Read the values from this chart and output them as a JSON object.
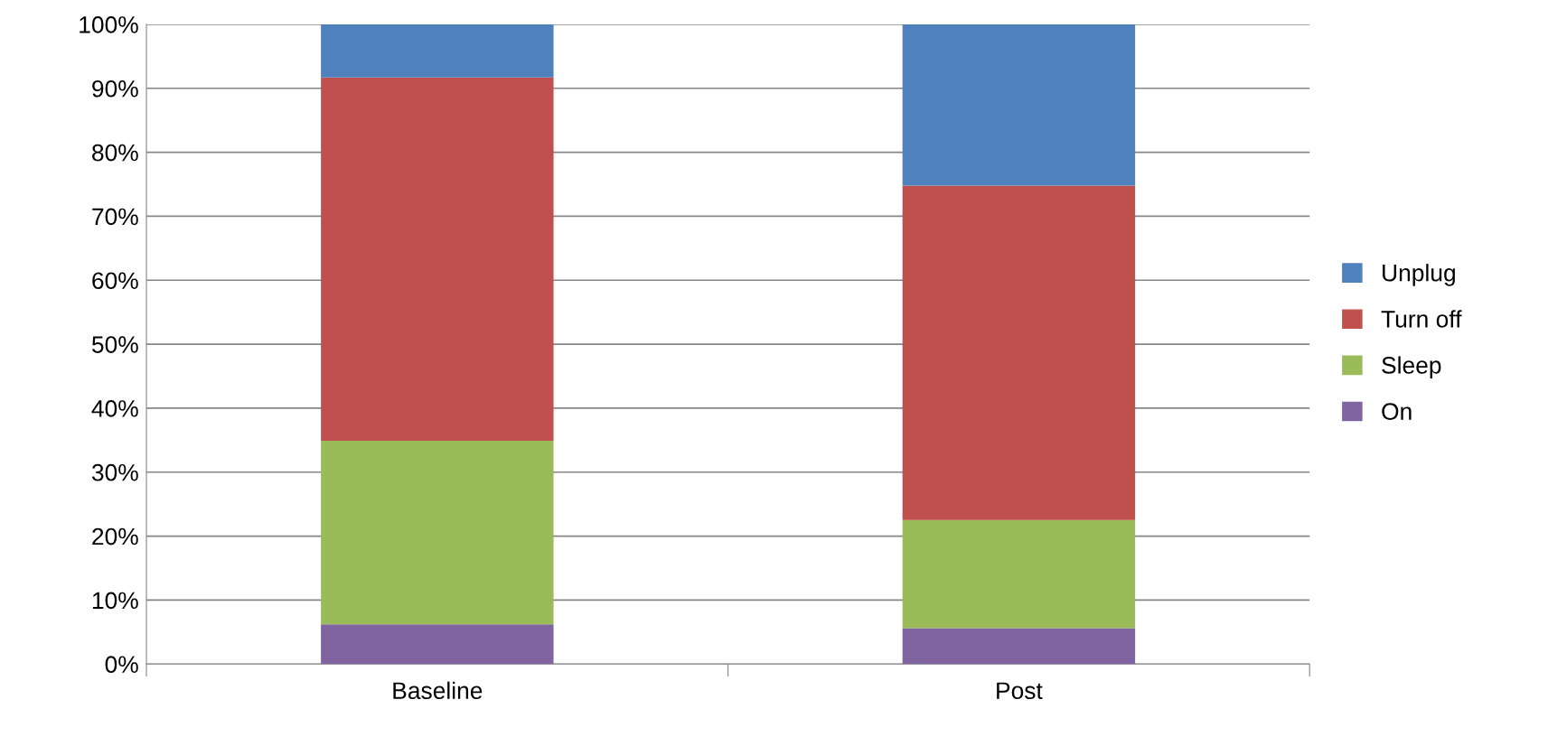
{
  "chart_data": {
    "type": "bar",
    "stacked": true,
    "categories": [
      "Baseline",
      "Post"
    ],
    "series": [
      {
        "name": "On",
        "color": "#8064a2",
        "values": [
          6.2,
          5.6
        ]
      },
      {
        "name": "Sleep",
        "color": "#9bbb59",
        "values": [
          28.7,
          16.9
        ]
      },
      {
        "name": "Turn off",
        "color": "#c0504d",
        "values": [
          56.8,
          52.3
        ]
      },
      {
        "name": "Unplug",
        "color": "#4f81bd",
        "values": [
          8.3,
          25.2
        ]
      }
    ],
    "ylim": [
      0,
      100
    ],
    "yticks": [
      {
        "value": 0,
        "label": "0%"
      },
      {
        "value": 10,
        "label": "10%"
      },
      {
        "value": 20,
        "label": "20%"
      },
      {
        "value": 30,
        "label": "30%"
      },
      {
        "value": 40,
        "label": "40%"
      },
      {
        "value": 50,
        "label": "50%"
      },
      {
        "value": 60,
        "label": "60%"
      },
      {
        "value": 70,
        "label": "70%"
      },
      {
        "value": 80,
        "label": "80%"
      },
      {
        "value": 90,
        "label": "90%"
      },
      {
        "value": 100,
        "label": "100%"
      }
    ],
    "grid": "y",
    "legend": "right"
  }
}
